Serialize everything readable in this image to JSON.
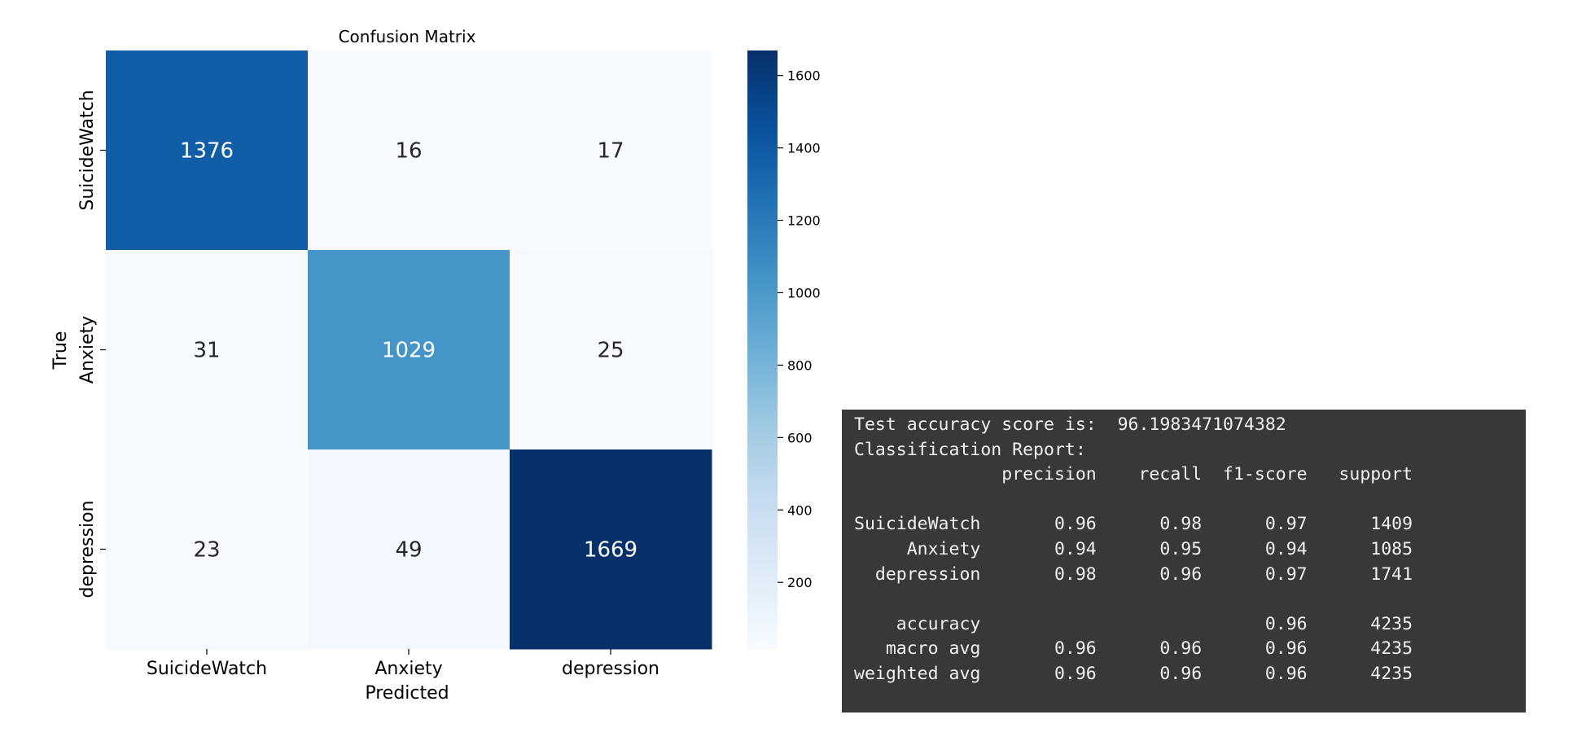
{
  "chart_data": {
    "type": "heatmap",
    "title": "Confusion Matrix",
    "xlabel": "Predicted",
    "ylabel": "True",
    "x_categories": [
      "SuicideWatch",
      "Anxiety",
      "depression"
    ],
    "y_categories": [
      "SuicideWatch",
      "Anxiety",
      "depression"
    ],
    "matrix": [
      [
        1376,
        16,
        17
      ],
      [
        31,
        1029,
        25
      ],
      [
        23,
        49,
        1669
      ]
    ],
    "colormap": "Blues",
    "colorbar": {
      "vmin": 16,
      "vmax": 1669,
      "ticks": [
        200,
        400,
        600,
        800,
        1000,
        1200,
        1400,
        1600
      ]
    },
    "colors": {
      "low": "#f7fbff",
      "high": "#08306b",
      "text_dark": "#262626",
      "text_light": "#ffffff"
    }
  },
  "console": {
    "background": "#383838",
    "lines": [
      "Test accuracy score is:  96.1983471074382",
      "Classification Report:",
      "              precision    recall  f1-score   support",
      "",
      "SuicideWatch       0.96      0.98      0.97      1409",
      "     Anxiety       0.94      0.95      0.94      1085",
      "  depression       0.98      0.96      0.97      1741",
      "",
      "    accuracy                           0.96      4235",
      "   macro avg       0.96      0.96      0.96      4235",
      "weighted avg       0.96      0.96      0.96      4235"
    ]
  }
}
